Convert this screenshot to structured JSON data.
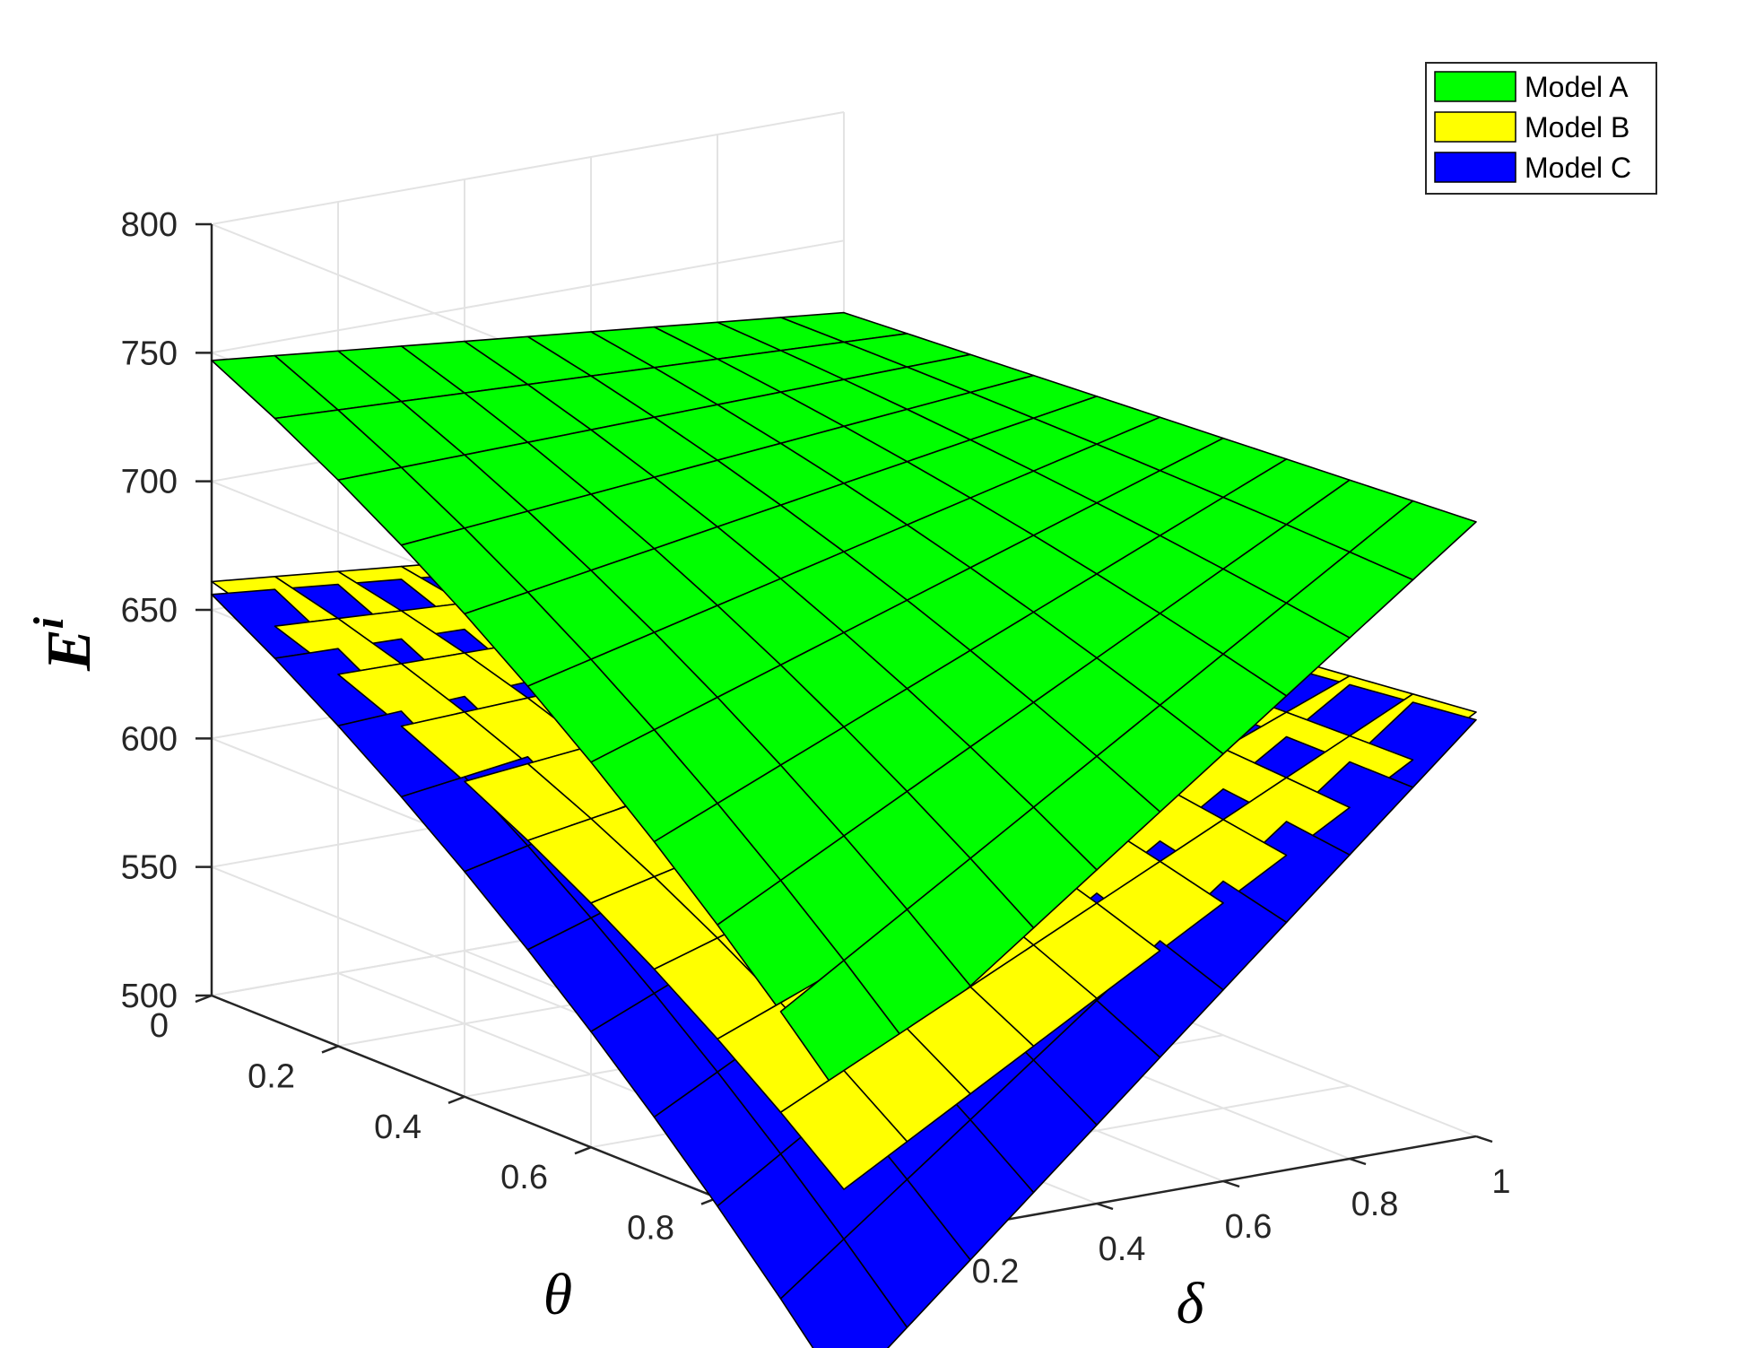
{
  "chart_data": {
    "type": "surface",
    "title": "",
    "xlabel": "δ",
    "ylabel": "θ",
    "zlabel": "E",
    "zlabel_superscript": "i",
    "xlim": [
      0,
      1
    ],
    "ylim": [
      0,
      1
    ],
    "zlim": [
      500,
      800
    ],
    "x_ticks": [
      "0",
      "0.2",
      "0.4",
      "0.6",
      "0.8",
      "1"
    ],
    "y_ticks": [
      "0",
      "0.2",
      "0.4",
      "0.6",
      "0.8",
      "1"
    ],
    "z_ticks": [
      "500",
      "550",
      "600",
      "650",
      "700",
      "750",
      "800"
    ],
    "grid": true,
    "legend_position": "top-right",
    "grid_resolution": 11,
    "series": [
      {
        "name": "Model A",
        "color": "#00ff00",
        "corners": {
          "d0_t0": 747,
          "d1_t0": 722,
          "d0_t1": 557,
          "d1_t1": 739
        }
      },
      {
        "name": "Model B",
        "color": "#ffff00",
        "corners": {
          "d0_t0": 661,
          "d1_t0": 637,
          "d0_t1": 523,
          "d1_t1": 665
        }
      },
      {
        "name": "Model C",
        "color": "#0000ff",
        "corners": {
          "d0_t0": 656,
          "d1_t0": 632,
          "d0_t1": 443,
          "d1_t1": 662
        }
      }
    ]
  }
}
